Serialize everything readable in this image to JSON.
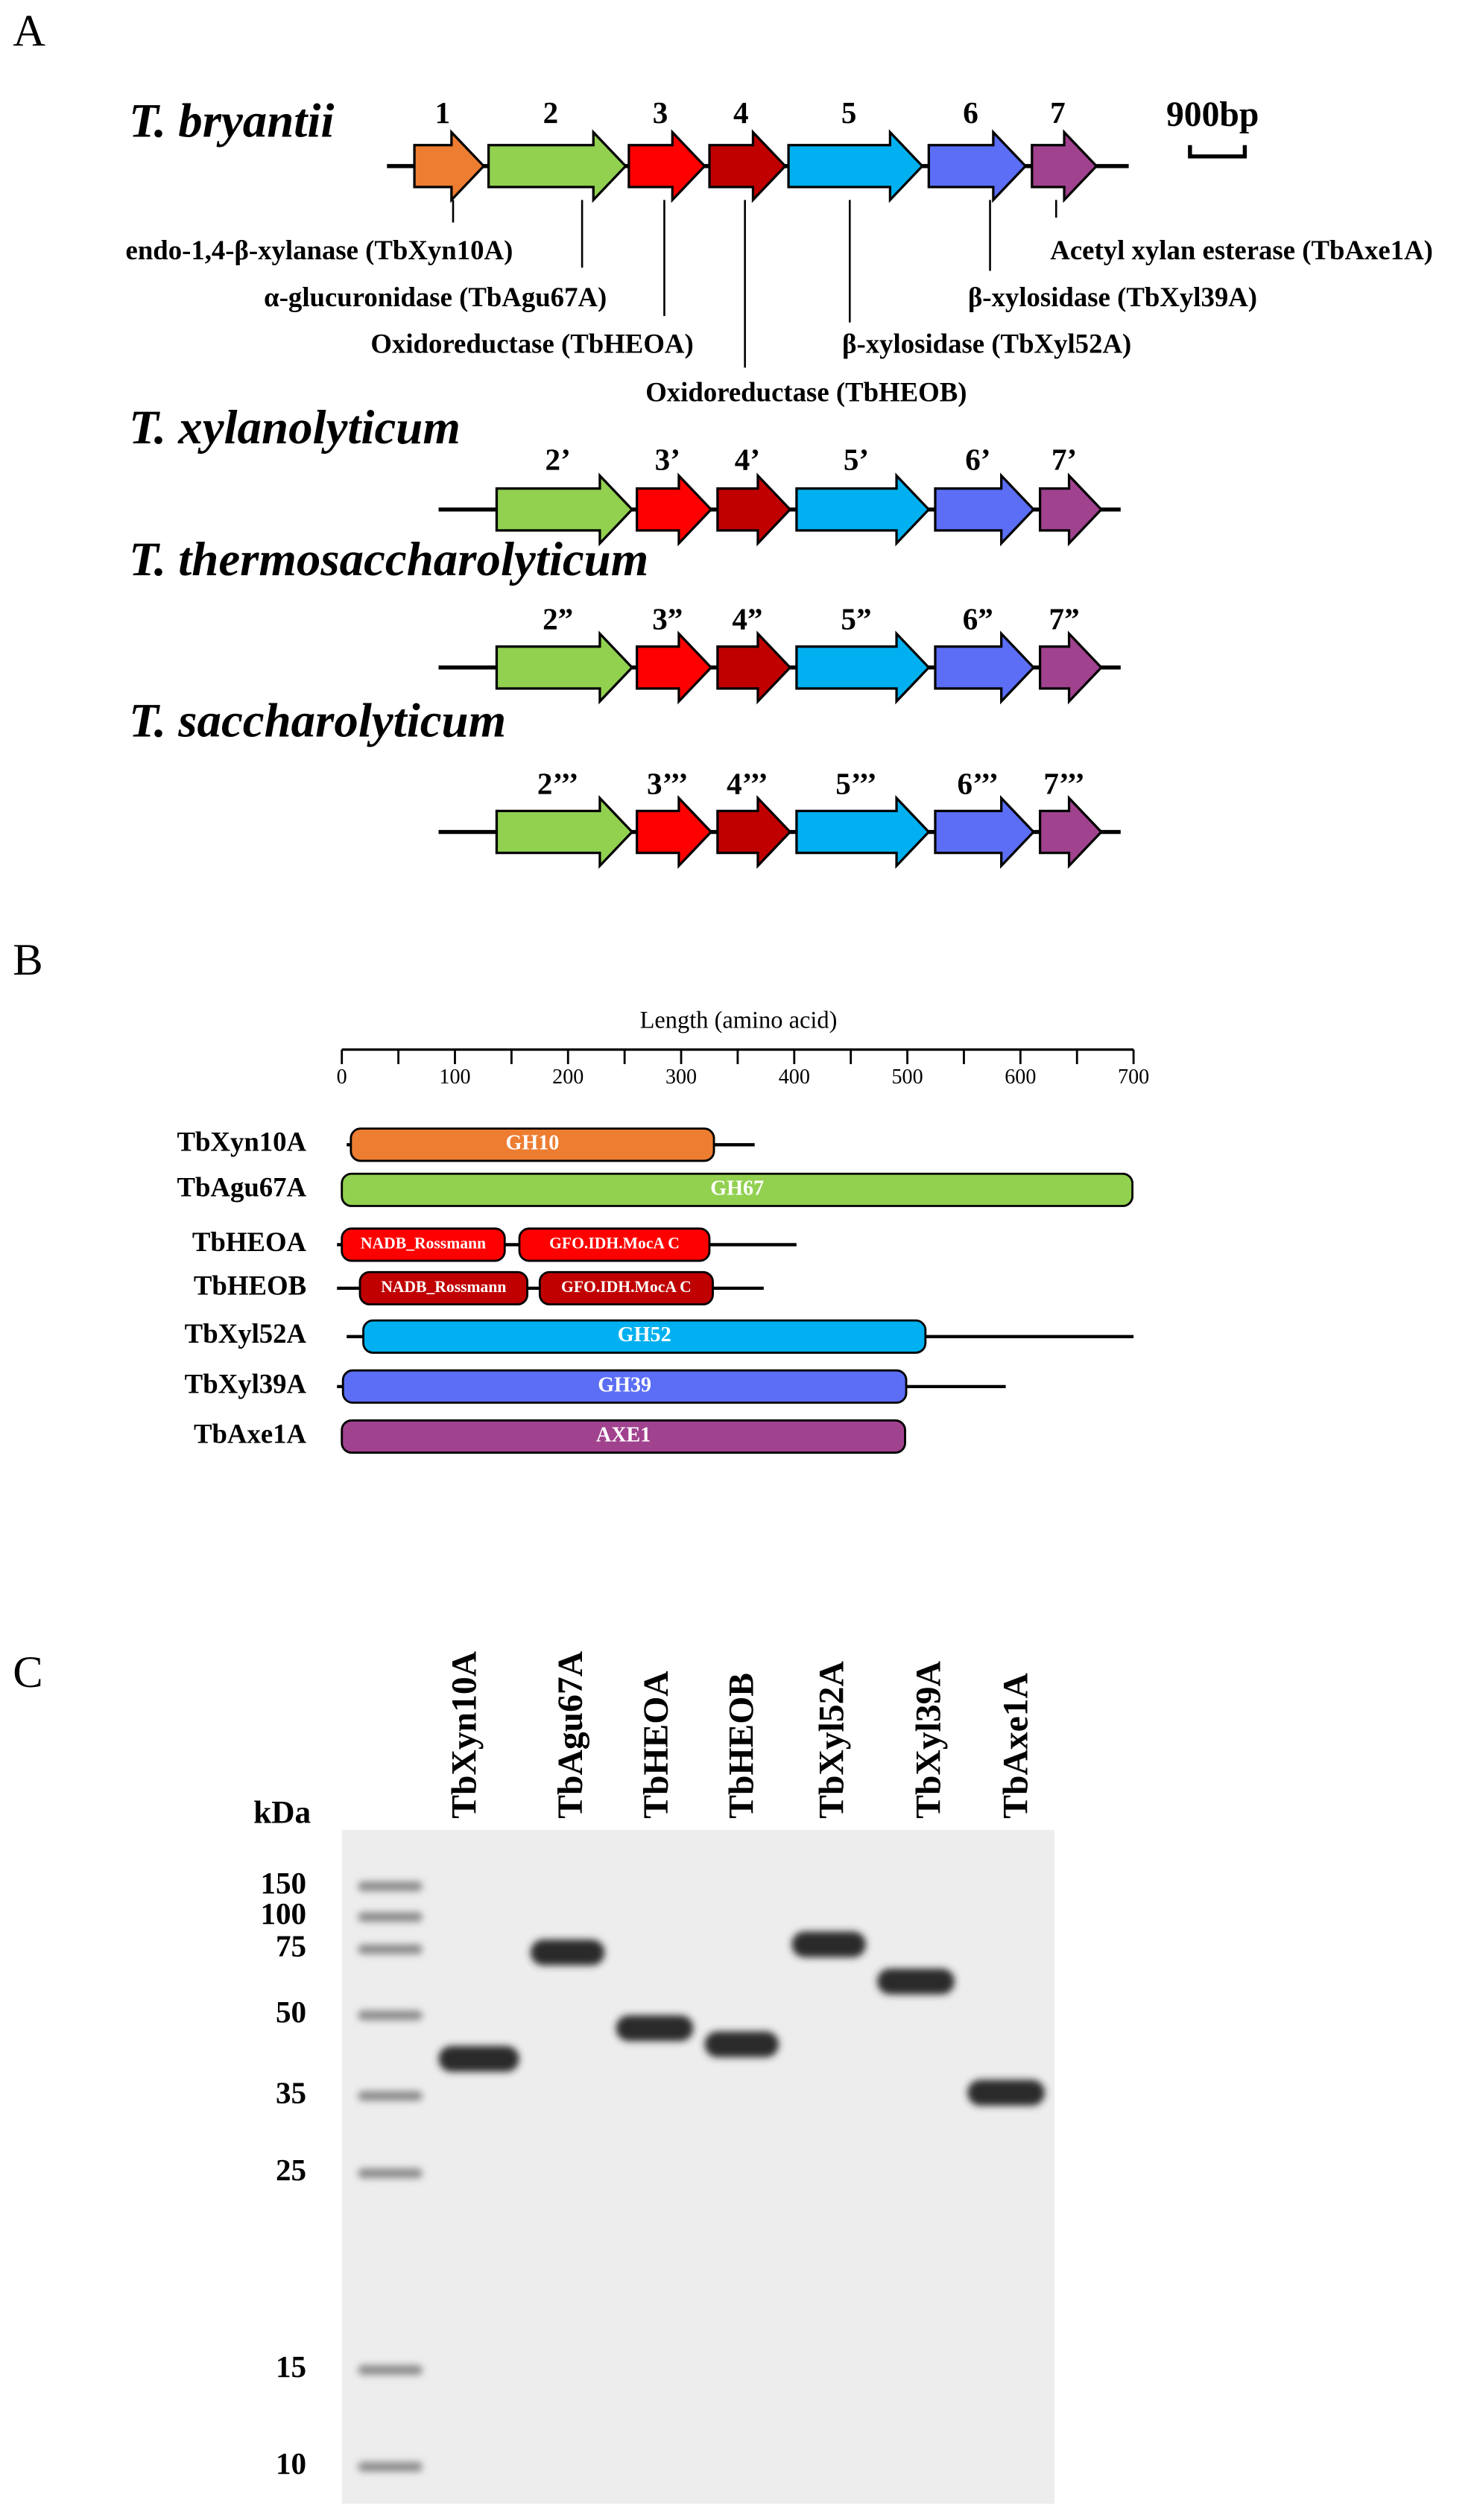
{
  "panel_a": {
    "label": "A",
    "scale_bar": "900bp",
    "organisms": [
      {
        "name": "T. bryantii",
        "genes": [
          {
            "label": "1",
            "color": "#ed7d31"
          },
          {
            "label": "2",
            "color": "#92d050"
          },
          {
            "label": "3",
            "color": "#ff0000"
          },
          {
            "label": "4",
            "color": "#c00000"
          },
          {
            "label": "5",
            "color": "#00b0f0"
          },
          {
            "label": "6",
            "color": "#5b6ef5"
          },
          {
            "label": "7",
            "color": "#a0428e"
          }
        ]
      },
      {
        "name": "T. xylanolyticum",
        "genes": [
          {
            "label": "2’",
            "color": "#92d050"
          },
          {
            "label": "3’",
            "color": "#ff0000"
          },
          {
            "label": "4’",
            "color": "#c00000"
          },
          {
            "label": "5’",
            "color": "#00b0f0"
          },
          {
            "label": "6’",
            "color": "#5b6ef5"
          },
          {
            "label": "7’",
            "color": "#a0428e"
          }
        ]
      },
      {
        "name": "T. thermosaccharolyticum",
        "genes": [
          {
            "label": "2”",
            "color": "#92d050"
          },
          {
            "label": "3”",
            "color": "#ff0000"
          },
          {
            "label": "4”",
            "color": "#c00000"
          },
          {
            "label": "5”",
            "color": "#00b0f0"
          },
          {
            "label": "6”",
            "color": "#5b6ef5"
          },
          {
            "label": "7”",
            "color": "#a0428e"
          }
        ]
      },
      {
        "name": "T. saccharolyticum",
        "genes": [
          {
            "label": "2’’’",
            "color": "#92d050"
          },
          {
            "label": "3’’’",
            "color": "#ff0000"
          },
          {
            "label": "4’’’",
            "color": "#c00000"
          },
          {
            "label": "5’’’",
            "color": "#00b0f0"
          },
          {
            "label": "6’’’",
            "color": "#5b6ef5"
          },
          {
            "label": "7’’’",
            "color": "#a0428e"
          }
        ]
      }
    ],
    "annotations": [
      "endo-1,4-β-xylanase (TbXyn10A)",
      "α-glucuronidase (TbAgu67A)",
      "Oxidoreductase (TbHEOA)",
      "Oxidoreductase (TbHEOB)",
      "β-xylosidase (TbXyl52A)",
      "β-xylosidase (TbXyl39A)",
      "Acetyl xylan esterase (TbAxe1A)"
    ]
  },
  "panel_b": {
    "label": "B",
    "axis_title": "Length (amino acid)",
    "xlim": [
      0,
      700
    ],
    "xticks": [
      0,
      100,
      200,
      300,
      400,
      500,
      600,
      700
    ],
    "minor_xticks": [
      50,
      150,
      250,
      350,
      450,
      550,
      650
    ],
    "proteins": [
      {
        "name": "TbXyn10A",
        "length": 365,
        "domains": [
          {
            "name": "GH10",
            "start": 8,
            "end": 329,
            "color": "#ed7d31"
          }
        ]
      },
      {
        "name": "TbAgu67A",
        "length": 699,
        "domains": [
          {
            "name": "GH67",
            "start": 0,
            "end": 699,
            "color": "#92d050"
          }
        ]
      },
      {
        "name": "TbHEOA",
        "length": 402,
        "domains": [
          {
            "name": "NADB_Rossmann",
            "start": 0,
            "end": 144,
            "color": "#ff0000"
          },
          {
            "name": "GFO.IDH.MocA C",
            "start": 157,
            "end": 325,
            "color": "#ff0000"
          }
        ]
      },
      {
        "name": "TbHEOB",
        "length": 373,
        "domains": [
          {
            "name": "NADB_Rossmann",
            "start": 16,
            "end": 164,
            "color": "#c00000"
          },
          {
            "name": "GFO.IDH.MocA C",
            "start": 175,
            "end": 328,
            "color": "#c00000"
          }
        ]
      },
      {
        "name": "TbXyl52A",
        "length": 700,
        "domains": [
          {
            "name": "GH52",
            "start": 19,
            "end": 516,
            "color": "#00b0f0"
          }
        ]
      },
      {
        "name": "TbXyl39A",
        "length": 587,
        "domains": [
          {
            "name": "GH39",
            "start": 1,
            "end": 499,
            "color": "#5b6ef5"
          }
        ]
      },
      {
        "name": "TbAxe1A",
        "length": 498,
        "domains": [
          {
            "name": "AXE1",
            "start": 0,
            "end": 498,
            "color": "#a0428e"
          }
        ]
      }
    ]
  },
  "panel_c": {
    "label": "C",
    "unit": "kDa",
    "markers": [
      150,
      100,
      75,
      50,
      35,
      25,
      15,
      10
    ],
    "lanes": [
      "TbXyn10A",
      "TbAgu67A",
      "TbHEOA",
      "TbHEOB",
      "TbXyl52A",
      "TbXyl39A",
      "TbAxe1A"
    ]
  }
}
